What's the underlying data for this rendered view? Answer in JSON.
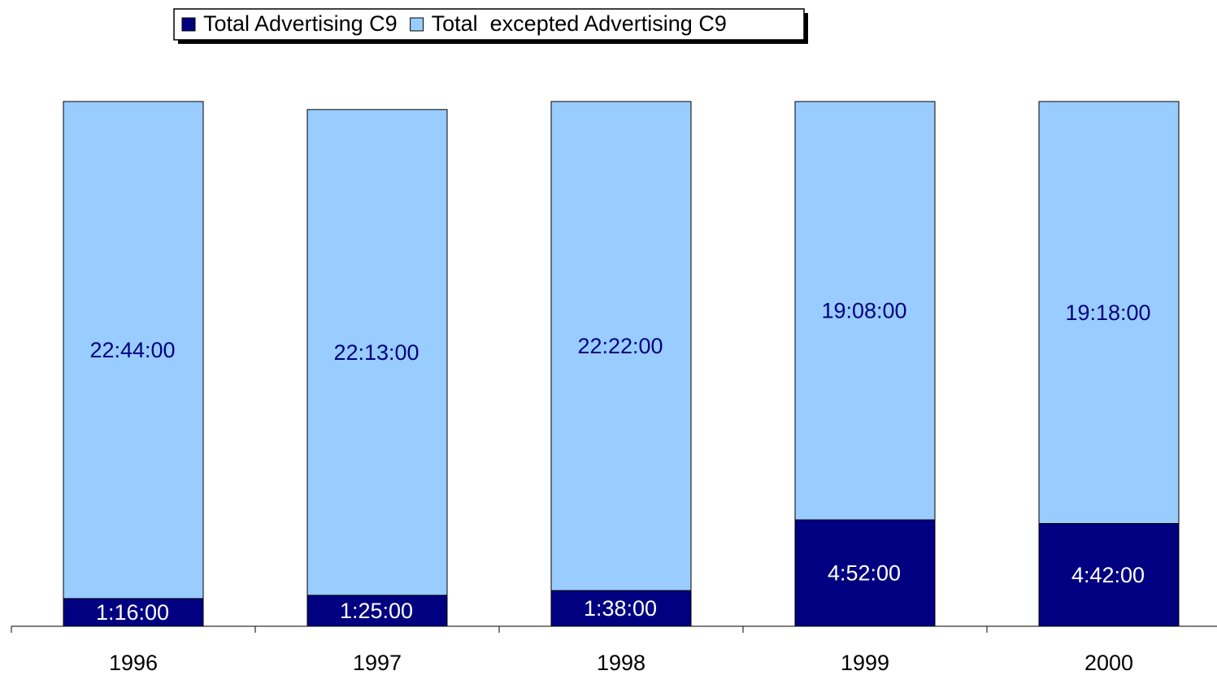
{
  "chart_data": {
    "type": "stacked_bar",
    "categories": [
      "1996",
      "1997",
      "1998",
      "1999",
      "2000"
    ],
    "series": [
      {
        "name": "Total Advertising C9",
        "color": "#000080",
        "label_color": "#ffffff",
        "values": [
          76,
          85,
          98,
          292,
          282
        ],
        "value_labels": [
          "1:16:00",
          "1:25:00",
          "1:38:00",
          "4:52:00",
          "4:42:00"
        ]
      },
      {
        "name": "Total  excepted Advertising C9",
        "color": "#99ccff",
        "label_color": "#000080",
        "values": [
          1364,
          1333,
          1342,
          1148,
          1158
        ],
        "value_labels": [
          "22:44:00",
          "22:13:00",
          "22:22:00",
          "19:08:00",
          "19:18:00"
        ]
      }
    ],
    "legend": "top"
  }
}
